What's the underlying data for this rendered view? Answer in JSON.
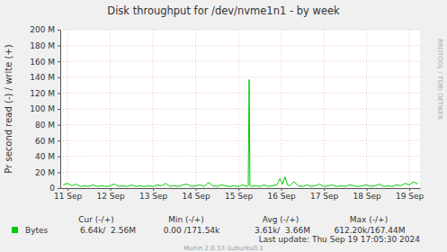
{
  "chart_data": {
    "type": "line",
    "title": "Disk throughput for /dev/nvme1n1 - by week",
    "y_label": "Pr second read (-) / write (+)",
    "x": [
      10.9,
      11.0,
      11.1,
      11.2,
      11.3,
      11.4,
      11.5,
      11.6,
      11.7,
      11.8,
      11.9,
      12.0,
      12.1,
      12.2,
      12.3,
      12.4,
      12.5,
      12.6,
      12.7,
      12.8,
      12.9,
      13.0,
      13.1,
      13.2,
      13.3,
      13.4,
      13.5,
      13.6,
      13.7,
      13.8,
      13.9,
      14.0,
      14.1,
      14.2,
      14.3,
      14.4,
      14.5,
      14.6,
      14.7,
      14.8,
      14.9,
      15.0,
      15.1,
      15.2,
      15.23,
      15.25,
      15.27,
      15.3,
      15.4,
      15.5,
      15.6,
      15.7,
      15.8,
      15.9,
      15.97,
      16.03,
      16.09,
      16.15,
      16.2,
      16.3,
      16.4,
      16.5,
      16.6,
      16.7,
      16.8,
      16.9,
      17.0,
      17.1,
      17.2,
      17.3,
      17.4,
      17.5,
      17.6,
      17.7,
      17.8,
      17.9,
      18.0,
      18.1,
      18.2,
      18.3,
      18.4,
      18.5,
      18.6,
      18.7,
      18.8,
      18.9,
      19.0,
      19.1,
      19.2
    ],
    "series": [
      {
        "name": "Bytes",
        "color": "#00cc00",
        "values": [
          4,
          6,
          3,
          5,
          2,
          3,
          2,
          4,
          2,
          3,
          2,
          3,
          5,
          2,
          3,
          2,
          4,
          2,
          3,
          2,
          3,
          2,
          4,
          3,
          6,
          2,
          3,
          2,
          4,
          5,
          2,
          3,
          4,
          2,
          7,
          3,
          2,
          4,
          3,
          2,
          3,
          2,
          4,
          2,
          3,
          137,
          3,
          2,
          3,
          2,
          4,
          2,
          3,
          4,
          12,
          5,
          14,
          4,
          3,
          8,
          3,
          2,
          4,
          2,
          3,
          5,
          2,
          3,
          4,
          2,
          3,
          2,
          4,
          3,
          2,
          3,
          4,
          2,
          3,
          5,
          2,
          3,
          2,
          4,
          3,
          6,
          4,
          8,
          5
        ]
      }
    ],
    "xlim": [
      10.83,
      19.25
    ],
    "xticks": [
      {
        "value": 11,
        "label": "11 Sep"
      },
      {
        "value": 12,
        "label": "12 Sep"
      },
      {
        "value": 13,
        "label": "13 Sep"
      },
      {
        "value": 14,
        "label": "14 Sep"
      },
      {
        "value": 15,
        "label": "15 Sep"
      },
      {
        "value": 16,
        "label": "16 Sep"
      },
      {
        "value": 17,
        "label": "17 Sep"
      },
      {
        "value": 18,
        "label": "18 Sep"
      },
      {
        "value": 19,
        "label": "19 Sep"
      }
    ],
    "ylim": [
      0,
      200
    ],
    "yticks": [
      0,
      {
        "value": 20,
        "label": "20 M"
      },
      {
        "value": 40,
        "label": "40 M"
      },
      {
        "value": 60,
        "label": "60 M"
      },
      {
        "value": 80,
        "label": "80 M"
      },
      {
        "value": 100,
        "label": "100 M"
      },
      {
        "value": 120,
        "label": "120 M"
      },
      {
        "value": 140,
        "label": "140 M"
      },
      {
        "value": 160,
        "label": "160 M"
      },
      {
        "value": 180,
        "label": "180 M"
      },
      {
        "value": 200,
        "label": "200 M"
      }
    ],
    "grid": true,
    "legend": "bottom",
    "stats_headers": [
      "Cur (-/+)",
      "Min (-/+)",
      "Avg (-/+)",
      "Max (-/+)"
    ],
    "stats_values": [
      "6.64k/  2.56M",
      "0.00 /171.54k",
      "3.61k/  3.66M",
      "612.20k/167.44M"
    ],
    "last_update": "Last update: Thu Sep 19 17:05:30 2024",
    "footer": "Munin 2.0.37-1ubuntu0.1",
    "watermark": "RRDTOOL / TOBI OETIKER"
  }
}
